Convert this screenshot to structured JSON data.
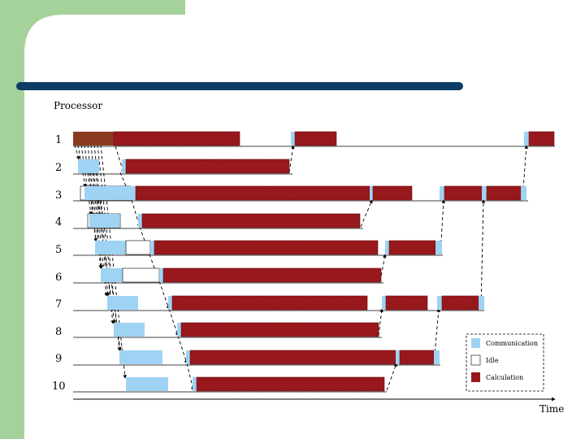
{
  "slide": {
    "colors": {
      "frame_green": "#a5d29a",
      "title_bar": "#0d3c64",
      "communication": "#9fd3f3",
      "calculation": "#a11b1f",
      "first_block": "#8b3a22",
      "idle": "#ffffff"
    }
  },
  "diagram": {
    "y_axis_label": "Processor",
    "x_axis_label": "Time",
    "processors": [
      "1",
      "2",
      "3",
      "4",
      "5",
      "6",
      "7",
      "8",
      "9",
      "10"
    ],
    "legend": [
      {
        "key": "communication",
        "label": "Communication"
      },
      {
        "key": "idle",
        "label": "Idle"
      },
      {
        "key": "calculation",
        "label": "Calculation"
      }
    ]
  }
}
